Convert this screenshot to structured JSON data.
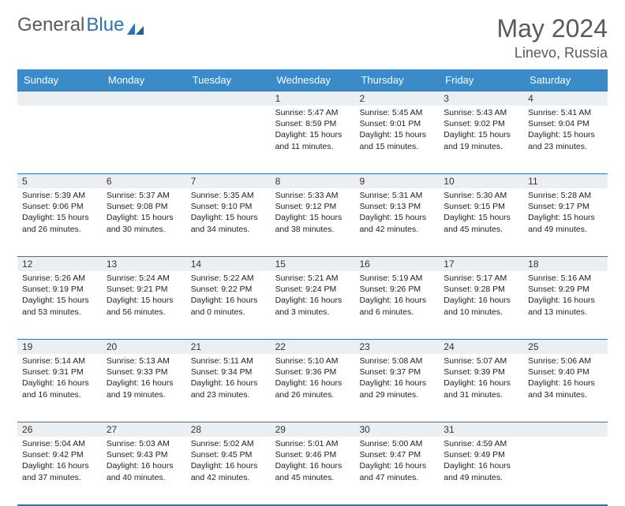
{
  "brand": {
    "part1": "General",
    "part2": "Blue"
  },
  "title": {
    "month": "May 2024",
    "location": "Linevo, Russia"
  },
  "colors": {
    "header_bg": "#3b8bc8",
    "header_text": "#ffffff",
    "rule": "#2f73b5",
    "numstrip_bg": "#eceff1",
    "text": "#222222",
    "brand_gray": "#5a5a5a",
    "brand_blue": "#2f73b5"
  },
  "layout": {
    "cols": 7,
    "rows": 5,
    "cell_min_height": 86,
    "font_info": 10.5
  },
  "days": [
    "Sunday",
    "Monday",
    "Tuesday",
    "Wednesday",
    "Thursday",
    "Friday",
    "Saturday"
  ],
  "weeks": [
    [
      {
        "n": "",
        "lines": []
      },
      {
        "n": "",
        "lines": []
      },
      {
        "n": "",
        "lines": []
      },
      {
        "n": "1",
        "lines": [
          "Sunrise: 5:47 AM",
          "Sunset: 8:59 PM",
          "Daylight: 15 hours",
          "and 11 minutes."
        ]
      },
      {
        "n": "2",
        "lines": [
          "Sunrise: 5:45 AM",
          "Sunset: 9:01 PM",
          "Daylight: 15 hours",
          "and 15 minutes."
        ]
      },
      {
        "n": "3",
        "lines": [
          "Sunrise: 5:43 AM",
          "Sunset: 9:02 PM",
          "Daylight: 15 hours",
          "and 19 minutes."
        ]
      },
      {
        "n": "4",
        "lines": [
          "Sunrise: 5:41 AM",
          "Sunset: 9:04 PM",
          "Daylight: 15 hours",
          "and 23 minutes."
        ]
      }
    ],
    [
      {
        "n": "5",
        "lines": [
          "Sunrise: 5:39 AM",
          "Sunset: 9:06 PM",
          "Daylight: 15 hours",
          "and 26 minutes."
        ]
      },
      {
        "n": "6",
        "lines": [
          "Sunrise: 5:37 AM",
          "Sunset: 9:08 PM",
          "Daylight: 15 hours",
          "and 30 minutes."
        ]
      },
      {
        "n": "7",
        "lines": [
          "Sunrise: 5:35 AM",
          "Sunset: 9:10 PM",
          "Daylight: 15 hours",
          "and 34 minutes."
        ]
      },
      {
        "n": "8",
        "lines": [
          "Sunrise: 5:33 AM",
          "Sunset: 9:12 PM",
          "Daylight: 15 hours",
          "and 38 minutes."
        ]
      },
      {
        "n": "9",
        "lines": [
          "Sunrise: 5:31 AM",
          "Sunset: 9:13 PM",
          "Daylight: 15 hours",
          "and 42 minutes."
        ]
      },
      {
        "n": "10",
        "lines": [
          "Sunrise: 5:30 AM",
          "Sunset: 9:15 PM",
          "Daylight: 15 hours",
          "and 45 minutes."
        ]
      },
      {
        "n": "11",
        "lines": [
          "Sunrise: 5:28 AM",
          "Sunset: 9:17 PM",
          "Daylight: 15 hours",
          "and 49 minutes."
        ]
      }
    ],
    [
      {
        "n": "12",
        "lines": [
          "Sunrise: 5:26 AM",
          "Sunset: 9:19 PM",
          "Daylight: 15 hours",
          "and 53 minutes."
        ]
      },
      {
        "n": "13",
        "lines": [
          "Sunrise: 5:24 AM",
          "Sunset: 9:21 PM",
          "Daylight: 15 hours",
          "and 56 minutes."
        ]
      },
      {
        "n": "14",
        "lines": [
          "Sunrise: 5:22 AM",
          "Sunset: 9:22 PM",
          "Daylight: 16 hours",
          "and 0 minutes."
        ]
      },
      {
        "n": "15",
        "lines": [
          "Sunrise: 5:21 AM",
          "Sunset: 9:24 PM",
          "Daylight: 16 hours",
          "and 3 minutes."
        ]
      },
      {
        "n": "16",
        "lines": [
          "Sunrise: 5:19 AM",
          "Sunset: 9:26 PM",
          "Daylight: 16 hours",
          "and 6 minutes."
        ]
      },
      {
        "n": "17",
        "lines": [
          "Sunrise: 5:17 AM",
          "Sunset: 9:28 PM",
          "Daylight: 16 hours",
          "and 10 minutes."
        ]
      },
      {
        "n": "18",
        "lines": [
          "Sunrise: 5:16 AM",
          "Sunset: 9:29 PM",
          "Daylight: 16 hours",
          "and 13 minutes."
        ]
      }
    ],
    [
      {
        "n": "19",
        "lines": [
          "Sunrise: 5:14 AM",
          "Sunset: 9:31 PM",
          "Daylight: 16 hours",
          "and 16 minutes."
        ]
      },
      {
        "n": "20",
        "lines": [
          "Sunrise: 5:13 AM",
          "Sunset: 9:33 PM",
          "Daylight: 16 hours",
          "and 19 minutes."
        ]
      },
      {
        "n": "21",
        "lines": [
          "Sunrise: 5:11 AM",
          "Sunset: 9:34 PM",
          "Daylight: 16 hours",
          "and 23 minutes."
        ]
      },
      {
        "n": "22",
        "lines": [
          "Sunrise: 5:10 AM",
          "Sunset: 9:36 PM",
          "Daylight: 16 hours",
          "and 26 minutes."
        ]
      },
      {
        "n": "23",
        "lines": [
          "Sunrise: 5:08 AM",
          "Sunset: 9:37 PM",
          "Daylight: 16 hours",
          "and 29 minutes."
        ]
      },
      {
        "n": "24",
        "lines": [
          "Sunrise: 5:07 AM",
          "Sunset: 9:39 PM",
          "Daylight: 16 hours",
          "and 31 minutes."
        ]
      },
      {
        "n": "25",
        "lines": [
          "Sunrise: 5:06 AM",
          "Sunset: 9:40 PM",
          "Daylight: 16 hours",
          "and 34 minutes."
        ]
      }
    ],
    [
      {
        "n": "26",
        "lines": [
          "Sunrise: 5:04 AM",
          "Sunset: 9:42 PM",
          "Daylight: 16 hours",
          "and 37 minutes."
        ]
      },
      {
        "n": "27",
        "lines": [
          "Sunrise: 5:03 AM",
          "Sunset: 9:43 PM",
          "Daylight: 16 hours",
          "and 40 minutes."
        ]
      },
      {
        "n": "28",
        "lines": [
          "Sunrise: 5:02 AM",
          "Sunset: 9:45 PM",
          "Daylight: 16 hours",
          "and 42 minutes."
        ]
      },
      {
        "n": "29",
        "lines": [
          "Sunrise: 5:01 AM",
          "Sunset: 9:46 PM",
          "Daylight: 16 hours",
          "and 45 minutes."
        ]
      },
      {
        "n": "30",
        "lines": [
          "Sunrise: 5:00 AM",
          "Sunset: 9:47 PM",
          "Daylight: 16 hours",
          "and 47 minutes."
        ]
      },
      {
        "n": "31",
        "lines": [
          "Sunrise: 4:59 AM",
          "Sunset: 9:49 PM",
          "Daylight: 16 hours",
          "and 49 minutes."
        ]
      },
      {
        "n": "",
        "lines": []
      }
    ]
  ]
}
